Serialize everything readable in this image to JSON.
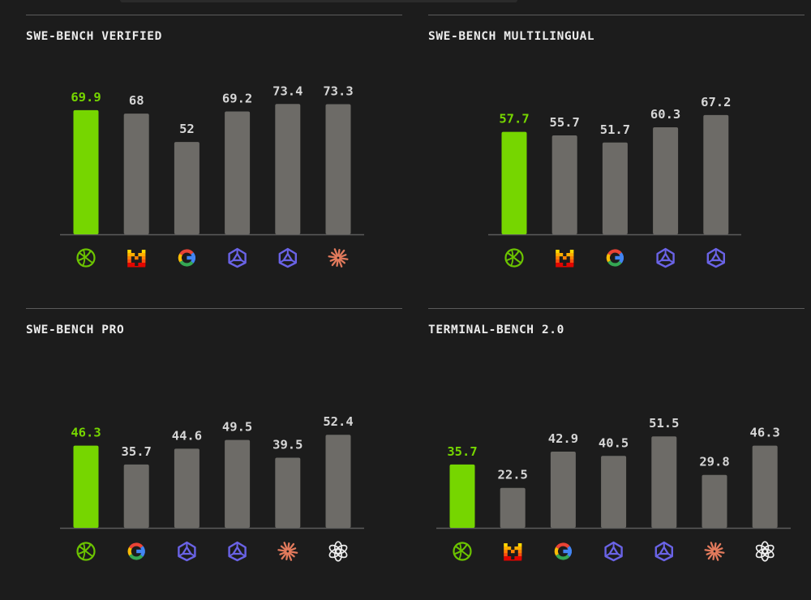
{
  "colors": {
    "highlight": "#76d600",
    "bar": "#6d6b67",
    "axis": "#5b5b5b",
    "label": "#d6d6d6"
  },
  "chart_data": [
    {
      "type": "bar",
      "title": "SWE-BENCH VERIFIED",
      "ylim": [
        0,
        100
      ],
      "categories": [
        "globe-logo",
        "m-logo",
        "g-logo",
        "prism-logo",
        "prism-logo",
        "burst-logo"
      ],
      "values": [
        69.9,
        68,
        52,
        69.2,
        73.4,
        73.3
      ],
      "value_labels": [
        "69.9",
        "68",
        "52",
        "69.2",
        "73.4",
        "73.3"
      ],
      "highlight_index": 0
    },
    {
      "type": "bar",
      "title": "SWE-BENCH MULTILINGUAL",
      "ylim": [
        0,
        100
      ],
      "categories": [
        "globe-logo",
        "m-logo",
        "g-logo",
        "prism-logo",
        "prism-logo"
      ],
      "values": [
        57.7,
        55.7,
        51.7,
        60.3,
        67.2
      ],
      "value_labels": [
        "57.7",
        "55.7",
        "51.7",
        "60.3",
        "67.2"
      ],
      "highlight_index": 0
    },
    {
      "type": "bar",
      "title": "SWE-BENCH PRO",
      "ylim": [
        0,
        100
      ],
      "categories": [
        "globe-logo",
        "g-logo",
        "prism-logo",
        "prism-logo",
        "burst-logo",
        "knot-logo"
      ],
      "values": [
        46.3,
        35.7,
        44.6,
        49.5,
        39.5,
        52.4
      ],
      "value_labels": [
        "46.3",
        "35.7",
        "44.6",
        "49.5",
        "39.5",
        "52.4"
      ],
      "highlight_index": 0
    },
    {
      "type": "bar",
      "title": "TERMINAL-BENCH 2.0",
      "ylim": [
        0,
        100
      ],
      "categories": [
        "globe-logo",
        "m-logo",
        "g-logo",
        "prism-logo",
        "prism-logo",
        "burst-logo",
        "knot-logo"
      ],
      "values": [
        35.7,
        22.5,
        42.9,
        40.5,
        51.5,
        29.8,
        46.3
      ],
      "value_labels": [
        "35.7",
        "22.5",
        "42.9",
        "40.5",
        "51.5",
        "29.8",
        "46.3"
      ],
      "highlight_index": 0
    }
  ]
}
